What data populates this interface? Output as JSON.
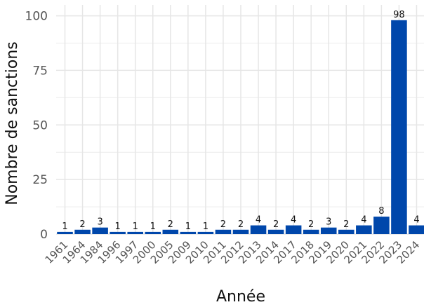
{
  "chart_data": {
    "type": "bar",
    "title": "",
    "xlabel": "Année",
    "ylabel": "Nombre de sanctions",
    "categories": [
      "1961",
      "1964",
      "1984",
      "1996",
      "1997",
      "2000",
      "2005",
      "2009",
      "2010",
      "2011",
      "2012",
      "2013",
      "2014",
      "2017",
      "2018",
      "2019",
      "2020",
      "2021",
      "2022",
      "2023",
      "2024"
    ],
    "values": [
      1,
      2,
      3,
      1,
      1,
      1,
      2,
      1,
      1,
      2,
      2,
      4,
      2,
      4,
      2,
      3,
      2,
      4,
      8,
      98,
      4
    ],
    "ylim": [
      0,
      105
    ],
    "yticks": [
      0,
      25,
      50,
      75,
      100
    ],
    "grid": true,
    "bar_color": "#0047AB",
    "data_labels": true
  }
}
